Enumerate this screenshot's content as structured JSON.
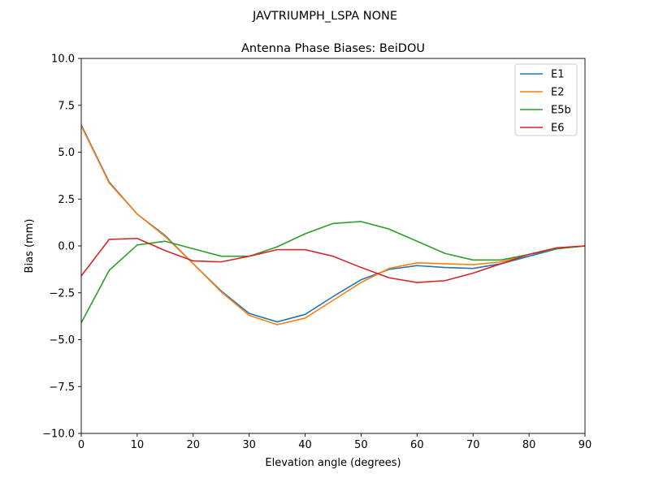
{
  "chart_data": {
    "type": "line",
    "suptitle": "JAVTRIUMPH_LSPA NONE",
    "title": "Antenna Phase Biases: BeiDOU",
    "xlabel": "Elevation angle (degrees)",
    "ylabel": "Bias (mm)",
    "xlim": [
      0,
      90
    ],
    "ylim": [
      -10,
      10
    ],
    "xticks": [
      0,
      10,
      20,
      30,
      40,
      50,
      60,
      70,
      80,
      90
    ],
    "yticks": [
      -10.0,
      -7.5,
      -5.0,
      -2.5,
      0.0,
      2.5,
      5.0,
      7.5,
      10.0
    ],
    "xtick_labels": [
      "0",
      "10",
      "20",
      "30",
      "40",
      "50",
      "60",
      "70",
      "80",
      "90"
    ],
    "ytick_labels": [
      "−10.0",
      "−7.5",
      "−5.0",
      "−2.5",
      "0.0",
      "2.5",
      "5.0",
      "7.5",
      "10.0"
    ],
    "grid": false,
    "legend_position": "top-right",
    "x": [
      0,
      5,
      10,
      15,
      20,
      25,
      30,
      35,
      40,
      45,
      50,
      55,
      60,
      65,
      70,
      75,
      80,
      85,
      90
    ],
    "series": [
      {
        "name": "E1",
        "color": "#1f77b4",
        "values": [
          6.45,
          3.4,
          1.7,
          0.55,
          -0.95,
          -2.4,
          -3.6,
          -4.05,
          -3.65,
          -2.7,
          -1.8,
          -1.25,
          -1.05,
          -1.15,
          -1.2,
          -0.95,
          -0.55,
          -0.15,
          0.0
        ]
      },
      {
        "name": "E2",
        "color": "#ff7f0e",
        "values": [
          6.4,
          3.35,
          1.7,
          0.5,
          -0.95,
          -2.45,
          -3.7,
          -4.2,
          -3.85,
          -2.9,
          -1.95,
          -1.2,
          -0.9,
          -0.95,
          -1.0,
          -0.85,
          -0.45,
          -0.1,
          0.0
        ]
      },
      {
        "name": "E5b",
        "color": "#2ca02c",
        "values": [
          -4.1,
          -1.3,
          0.05,
          0.25,
          -0.15,
          -0.55,
          -0.55,
          -0.05,
          0.65,
          1.2,
          1.3,
          0.9,
          0.25,
          -0.4,
          -0.75,
          -0.75,
          -0.45,
          -0.15,
          0.0
        ]
      },
      {
        "name": "E6",
        "color": "#d62728",
        "values": [
          -1.6,
          0.35,
          0.4,
          -0.25,
          -0.8,
          -0.85,
          -0.55,
          -0.2,
          -0.2,
          -0.55,
          -1.15,
          -1.7,
          -1.95,
          -1.85,
          -1.45,
          -0.95,
          -0.45,
          -0.1,
          0.0
        ]
      }
    ]
  }
}
